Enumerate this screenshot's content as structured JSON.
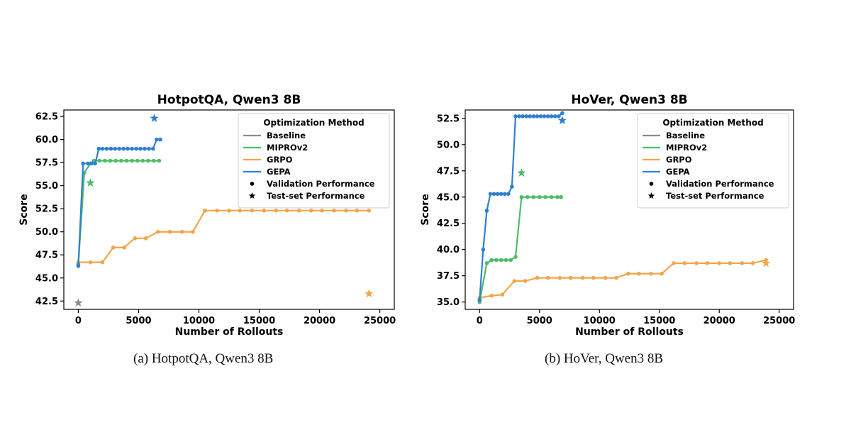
{
  "colors": {
    "baseline": "#8c8c8c",
    "miprov2": "#4cbc69",
    "grpo": "#f2a64a",
    "gepa": "#2f7fd3",
    "axis": "#000000"
  },
  "legend": {
    "title": "Optimization Method",
    "entries": [
      {
        "label": "Baseline",
        "kind": "line",
        "color": "#8c8c8c"
      },
      {
        "label": "MIPROv2",
        "kind": "line",
        "color": "#4cbc69"
      },
      {
        "label": "GRPO",
        "kind": "line",
        "color": "#f2a64a"
      },
      {
        "label": "GEPA",
        "kind": "line",
        "color": "#2f7fd3"
      },
      {
        "label": "Validation Performance",
        "kind": "dot",
        "color": "#000000"
      },
      {
        "label": "Test-set Performance",
        "kind": "star",
        "color": "#000000"
      }
    ]
  },
  "captions": {
    "a": "(a) HotpotQA, Qwen3 8B",
    "b": "(b) HoVer, Qwen3 8B"
  },
  "chart_data": [
    {
      "id": "a",
      "type": "line",
      "title": "HotpotQA, Qwen3 8B",
      "xlabel": "Number of Rollouts",
      "ylabel": "Score",
      "xlim": [
        -1200,
        26200
      ],
      "ylim": [
        41.6,
        63.2
      ],
      "xticks": [
        0,
        5000,
        10000,
        15000,
        20000,
        25000
      ],
      "yticks": [
        42.5,
        45.0,
        47.5,
        50.0,
        52.5,
        55.0,
        57.5,
        60.0,
        62.5
      ],
      "legend_position": "top-right",
      "series": [
        {
          "name": "MIPROv2",
          "color": "#4cbc69",
          "points": [
            [
              0,
              46.5
            ],
            [
              500,
              56.4
            ],
            [
              1000,
              57.4
            ],
            [
              1300,
              57.7
            ],
            [
              1750,
              57.7
            ],
            [
              2200,
              57.7
            ],
            [
              2650,
              57.7
            ],
            [
              3100,
              57.7
            ],
            [
              3550,
              57.7
            ],
            [
              4000,
              57.7
            ],
            [
              4450,
              57.7
            ],
            [
              4900,
              57.7
            ],
            [
              5350,
              57.7
            ],
            [
              5800,
              57.7
            ],
            [
              6250,
              57.7
            ],
            [
              6700,
              57.7
            ]
          ],
          "test": [
            1000,
            55.3
          ]
        },
        {
          "name": "GRPO",
          "color": "#f2a64a",
          "points": [
            [
              0,
              46.7
            ],
            [
              1000,
              46.7
            ],
            [
              2000,
              46.7
            ],
            [
              2900,
              48.3
            ],
            [
              3800,
              48.3
            ],
            [
              4700,
              49.3
            ],
            [
              5600,
              49.3
            ],
            [
              6600,
              50.0
            ],
            [
              7600,
              50.0
            ],
            [
              8600,
              50.0
            ],
            [
              9500,
              50.0
            ],
            [
              10500,
              52.3
            ],
            [
              11500,
              52.3
            ],
            [
              12500,
              52.3
            ],
            [
              13400,
              52.3
            ],
            [
              14400,
              52.3
            ],
            [
              15400,
              52.3
            ],
            [
              16400,
              52.3
            ],
            [
              17300,
              52.3
            ],
            [
              18300,
              52.3
            ],
            [
              19300,
              52.3
            ],
            [
              20200,
              52.3
            ],
            [
              21200,
              52.3
            ],
            [
              22200,
              52.3
            ],
            [
              23100,
              52.3
            ],
            [
              24100,
              52.3
            ]
          ],
          "test": [
            24100,
            43.3
          ]
        },
        {
          "name": "GEPA",
          "color": "#2f7fd3",
          "points": [
            [
              0,
              46.3
            ],
            [
              400,
              57.4
            ],
            [
              800,
              57.4
            ],
            [
              1100,
              57.4
            ],
            [
              1400,
              57.4
            ],
            [
              1700,
              59.0
            ],
            [
              2000,
              59.0
            ],
            [
              2350,
              59.0
            ],
            [
              2700,
              59.0
            ],
            [
              3050,
              59.0
            ],
            [
              3400,
              59.0
            ],
            [
              3750,
              59.0
            ],
            [
              4100,
              59.0
            ],
            [
              4450,
              59.0
            ],
            [
              4800,
              59.0
            ],
            [
              5150,
              59.0
            ],
            [
              5500,
              59.0
            ],
            [
              5850,
              59.0
            ],
            [
              6200,
              59.0
            ],
            [
              6500,
              60.0
            ],
            [
              6800,
              60.0
            ]
          ],
          "test": [
            6300,
            62.3
          ]
        },
        {
          "name": "Baseline",
          "color": "#8c8c8c",
          "points": [],
          "test": [
            0,
            42.3
          ]
        }
      ]
    },
    {
      "id": "b",
      "type": "line",
      "title": "HoVer, Qwen3 8B",
      "xlabel": "Number of Rollouts",
      "ylabel": "Score",
      "xlim": [
        -1200,
        26200
      ],
      "ylim": [
        34.3,
        53.3
      ],
      "xticks": [
        0,
        5000,
        10000,
        15000,
        20000,
        25000
      ],
      "yticks": [
        35.0,
        37.5,
        40.0,
        42.5,
        45.0,
        47.5,
        50.0,
        52.5
      ],
      "legend_position": "top-right",
      "series": [
        {
          "name": "MIPROv2",
          "color": "#4cbc69",
          "points": [
            [
              0,
              35.0
            ],
            [
              600,
              38.7
            ],
            [
              1000,
              39.0
            ],
            [
              1400,
              39.0
            ],
            [
              1800,
              39.0
            ],
            [
              2200,
              39.0
            ],
            [
              2600,
              39.0
            ],
            [
              3000,
              39.3
            ],
            [
              3500,
              45.0
            ],
            [
              4000,
              45.0
            ],
            [
              4500,
              45.0
            ],
            [
              5000,
              45.0
            ],
            [
              5500,
              45.0
            ],
            [
              6000,
              45.0
            ],
            [
              6500,
              45.0
            ],
            [
              6800,
              45.0
            ]
          ],
          "test": [
            3500,
            47.3
          ]
        },
        {
          "name": "GRPO",
          "color": "#f2a64a",
          "points": [
            [
              0,
              35.4
            ],
            [
              1000,
              35.6
            ],
            [
              1900,
              35.7
            ],
            [
              2900,
              37.0
            ],
            [
              3800,
              37.0
            ],
            [
              4800,
              37.3
            ],
            [
              5700,
              37.3
            ],
            [
              6700,
              37.3
            ],
            [
              7600,
              37.3
            ],
            [
              8600,
              37.3
            ],
            [
              9500,
              37.3
            ],
            [
              10500,
              37.3
            ],
            [
              11400,
              37.3
            ],
            [
              12400,
              37.7
            ],
            [
              13300,
              37.7
            ],
            [
              14300,
              37.7
            ],
            [
              15200,
              37.7
            ],
            [
              16200,
              38.7
            ],
            [
              17100,
              38.7
            ],
            [
              18100,
              38.7
            ],
            [
              19000,
              38.7
            ],
            [
              20000,
              38.7
            ],
            [
              20900,
              38.7
            ],
            [
              21900,
              38.7
            ],
            [
              22800,
              38.7
            ],
            [
              23900,
              39.0
            ]
          ],
          "test": [
            23900,
            38.7
          ]
        },
        {
          "name": "GEPA",
          "color": "#2f7fd3",
          "points": [
            [
              0,
              35.2
            ],
            [
              300,
              40.0
            ],
            [
              600,
              43.7
            ],
            [
              900,
              45.3
            ],
            [
              1200,
              45.3
            ],
            [
              1500,
              45.3
            ],
            [
              1800,
              45.3
            ],
            [
              2100,
              45.3
            ],
            [
              2400,
              45.3
            ],
            [
              2700,
              46.0
            ],
            [
              3000,
              52.7
            ],
            [
              3300,
              52.7
            ],
            [
              3600,
              52.7
            ],
            [
              3900,
              52.7
            ],
            [
              4200,
              52.7
            ],
            [
              4500,
              52.7
            ],
            [
              4800,
              52.7
            ],
            [
              5100,
              52.7
            ],
            [
              5400,
              52.7
            ],
            [
              5700,
              52.7
            ],
            [
              6000,
              52.7
            ],
            [
              6300,
              52.7
            ],
            [
              6600,
              52.7
            ],
            [
              6900,
              53.0
            ]
          ],
          "test": [
            6900,
            52.3
          ]
        }
      ]
    }
  ]
}
